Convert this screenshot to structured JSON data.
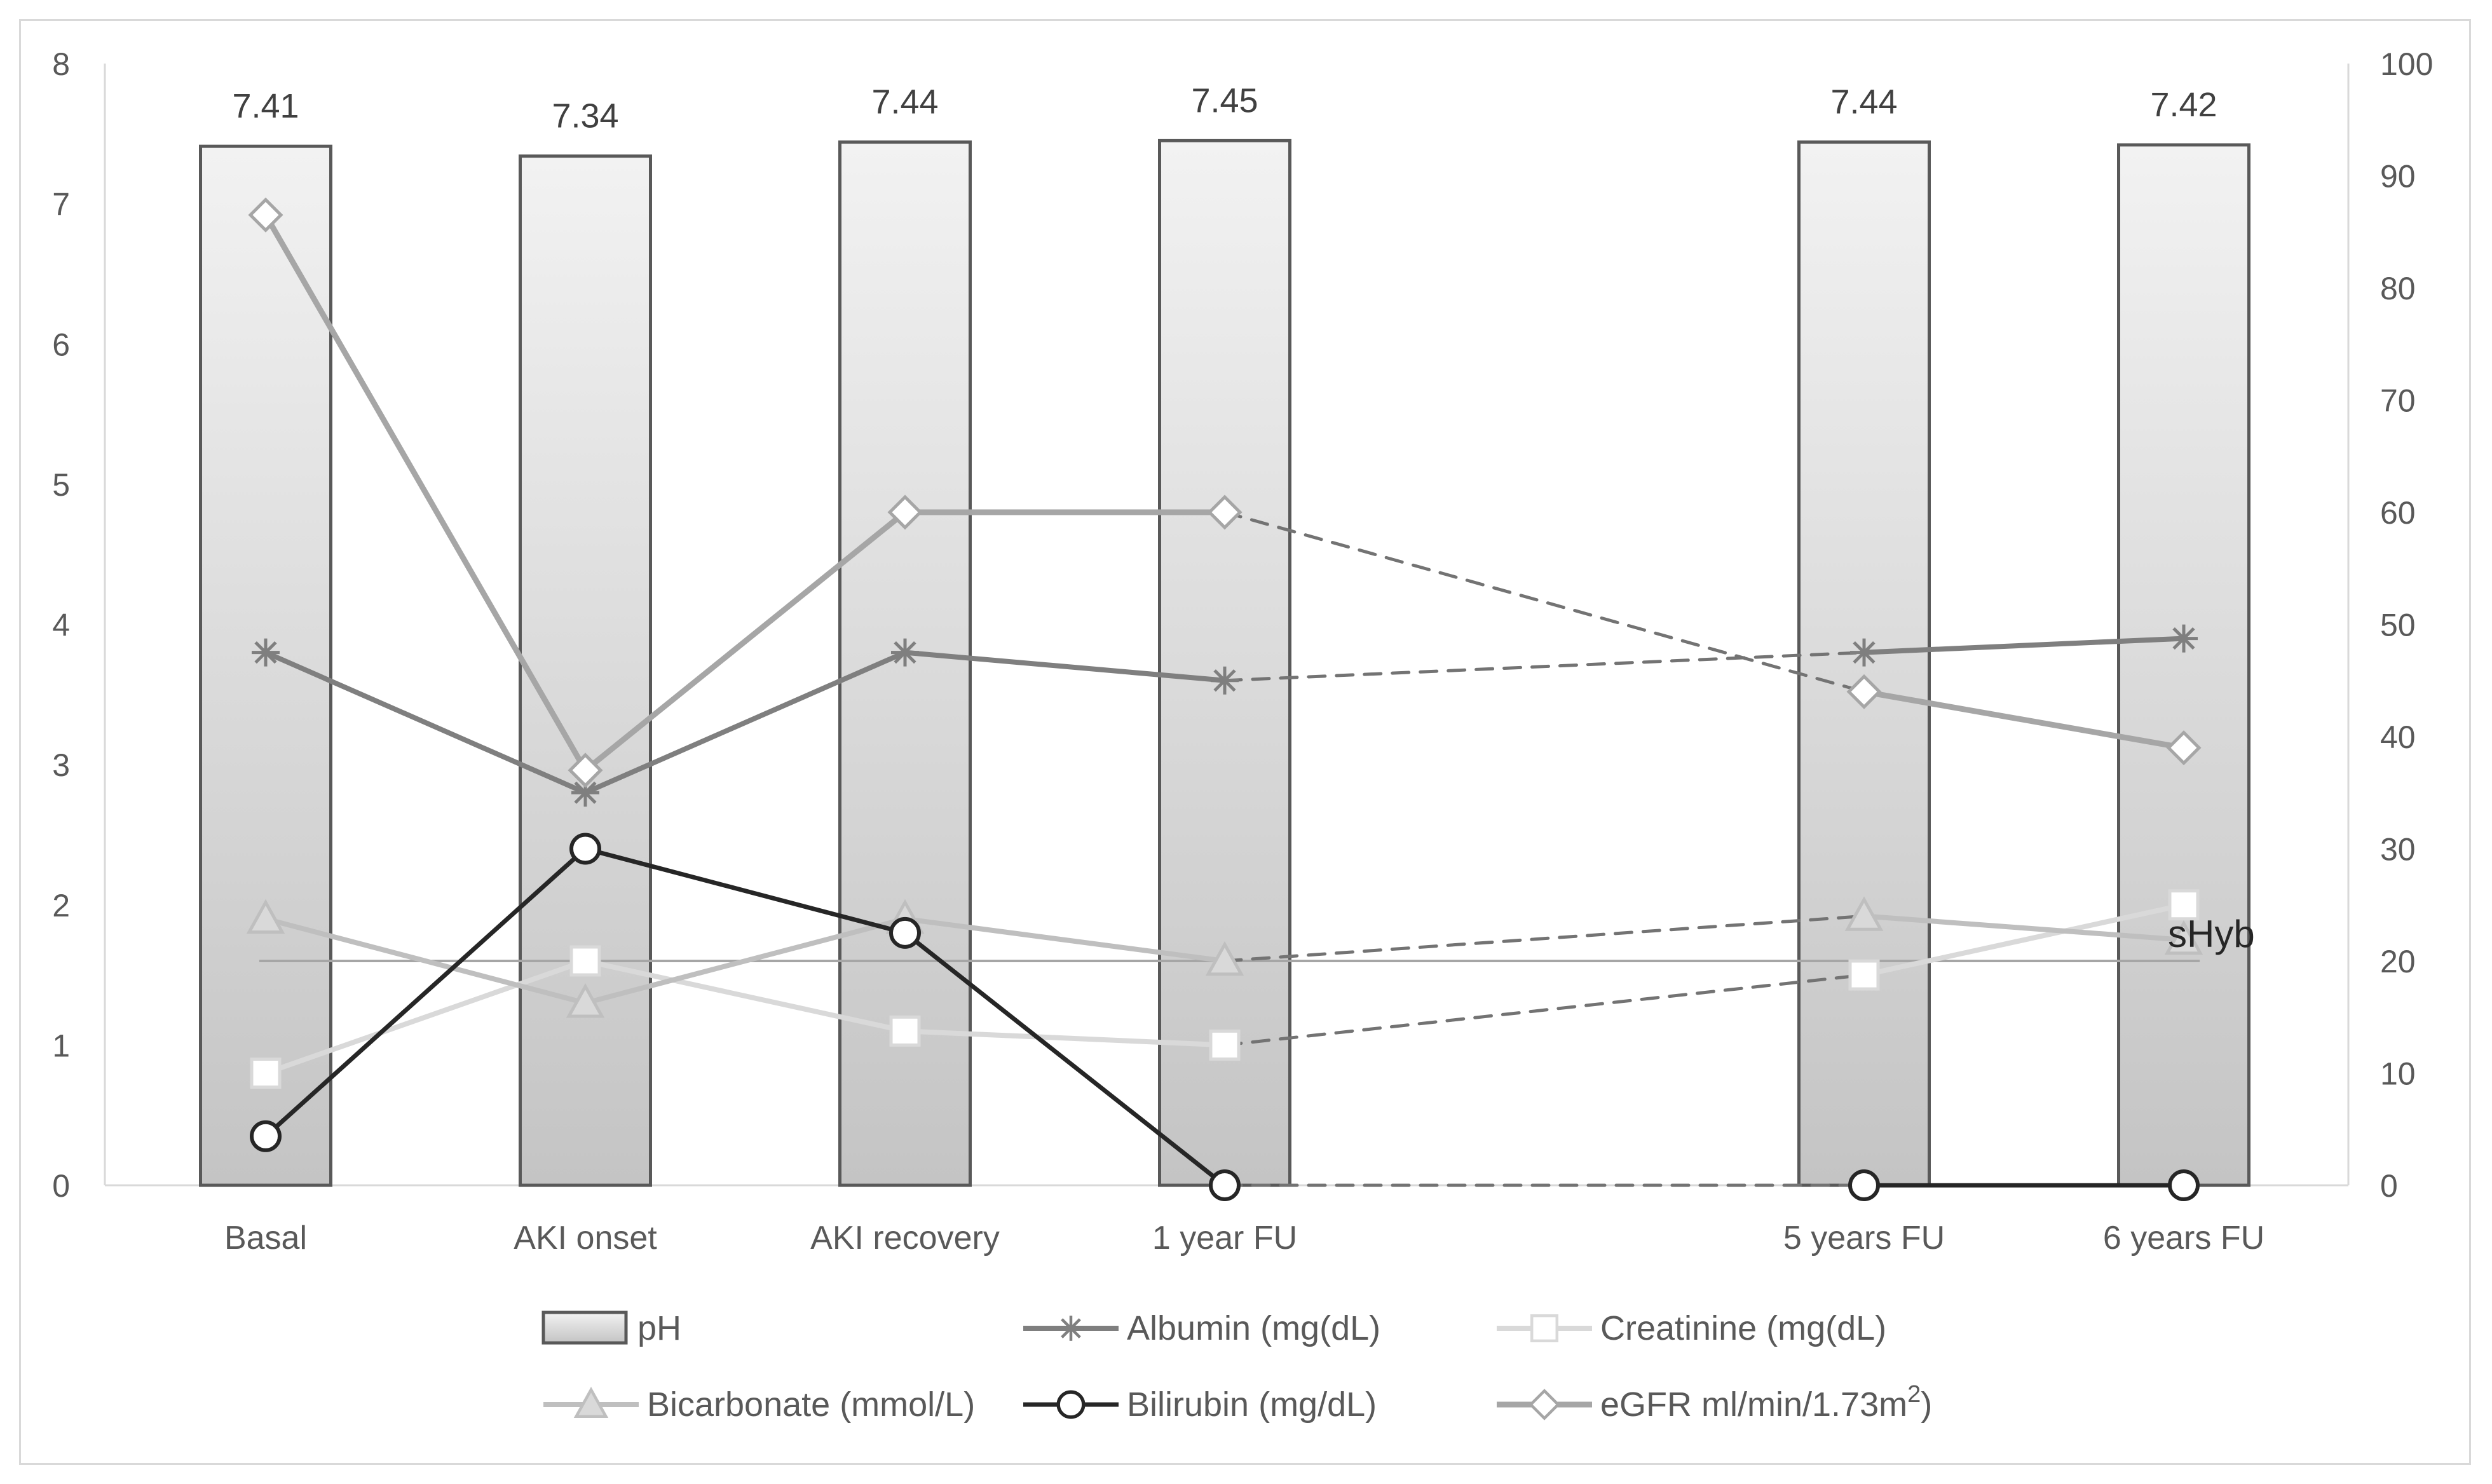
{
  "chart_data": {
    "type": "bar",
    "categories": [
      "Basal",
      "AKI onset",
      "AKI recovery",
      "1 year FU",
      "5 years FU",
      "6 years FU"
    ],
    "x_slots": [
      0,
      1,
      2,
      3,
      5,
      6
    ],
    "y_left": {
      "min": 0,
      "max": 8,
      "step": 1
    },
    "y_right": {
      "min": 0,
      "max": 100,
      "step": 10
    },
    "grid": false,
    "legend_position": "bottom",
    "series": [
      {
        "name": "pH",
        "kind": "bar",
        "axis": "left",
        "values": [
          7.41,
          7.34,
          7.44,
          7.45,
          7.44,
          7.42
        ],
        "labels": [
          "7.41",
          "7.34",
          "7.44",
          "7.45",
          "7.44",
          "7.42"
        ],
        "color": "#d0d0d0",
        "stroke": "#595959",
        "marker": "bar"
      },
      {
        "name": "Albumin (mg(dL)",
        "kind": "line",
        "axis": "left",
        "values": [
          3.8,
          2.8,
          3.8,
          3.6,
          3.8,
          3.9
        ],
        "color": "#7f7f7f",
        "marker": "star"
      },
      {
        "name": "Creatinine (mg(dL)",
        "kind": "line",
        "axis": "left",
        "values": [
          0.8,
          1.6,
          1.1,
          1.0,
          1.5,
          2.0
        ],
        "color": "#d9d9d9",
        "marker": "square"
      },
      {
        "name": "Bicarbonate (mmol/L)",
        "kind": "line",
        "axis": "left",
        "values": [
          1.9,
          1.3,
          1.9,
          1.6,
          1.92,
          1.75
        ],
        "color": "#bfbfbf",
        "marker": "triangle"
      },
      {
        "name": "Bilirubin (mg/dL)",
        "kind": "line",
        "axis": "left",
        "values": [
          0.35,
          2.4,
          1.8,
          0.0,
          0.0,
          0.0
        ],
        "color": "#262626",
        "marker": "circle"
      },
      {
        "name": "eGFR ml/min/1.73m",
        "name_superscript": "2",
        "name_suffix": ")",
        "kind": "line",
        "axis": "right",
        "values": [
          86.5,
          37,
          60,
          60,
          44,
          39
        ],
        "color": "#a6a6a6",
        "marker": "diamond"
      }
    ],
    "dashed_segment": {
      "from_slot": 3,
      "to_slot": 5,
      "color": "#737373"
    },
    "reference_line": {
      "value": 1.6,
      "axis": "left",
      "label": "sHyb",
      "color": "#a6a6a6"
    }
  }
}
